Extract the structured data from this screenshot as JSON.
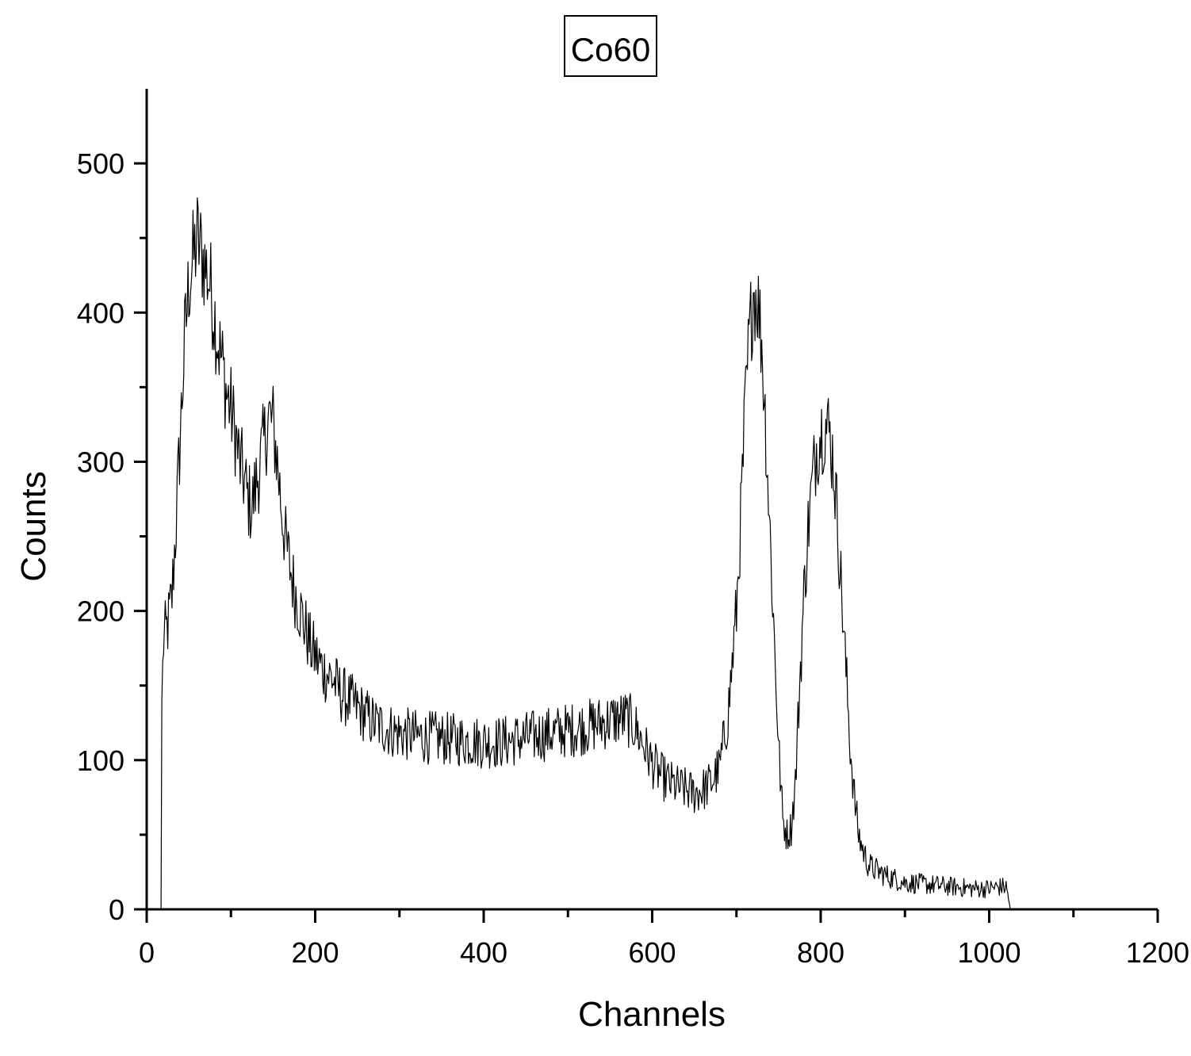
{
  "chart_data": {
    "type": "line",
    "title": "Co60",
    "xlabel": "Channels",
    "ylabel": "Counts",
    "xlim": [
      0,
      1200
    ],
    "ylim": [
      0,
      550
    ],
    "xticks": [
      0,
      200,
      400,
      600,
      800,
      1000,
      1200
    ],
    "xtick_labels": [
      "0",
      "200",
      "400",
      "600",
      "800",
      "1000",
      "1200"
    ],
    "yticks": [
      0,
      100,
      200,
      300,
      400,
      500
    ],
    "ytick_labels": [
      "0",
      "100",
      "200",
      "300",
      "400",
      "500"
    ],
    "x_minor_step": 100,
    "y_minor_step": 50,
    "grid": false,
    "line_color": "#000000",
    "series": [
      {
        "x": [
          17,
          18,
          20,
          25,
          30,
          35,
          40,
          45,
          50,
          55,
          60,
          65,
          70,
          75,
          80,
          85,
          90,
          95,
          100,
          105,
          110,
          115,
          120,
          125,
          130,
          135,
          140,
          145,
          150,
          155,
          160,
          165,
          170,
          175,
          180,
          185,
          190,
          195,
          200,
          210,
          220,
          230,
          240,
          250,
          260,
          270,
          280,
          290,
          300,
          320,
          340,
          360,
          380,
          400,
          420,
          440,
          460,
          480,
          500,
          520,
          540,
          560,
          570,
          580,
          590,
          600,
          610,
          620,
          630,
          640,
          650,
          660,
          670,
          680,
          690,
          700,
          705,
          710,
          715,
          720,
          725,
          730,
          735,
          740,
          745,
          750,
          755,
          760,
          765,
          770,
          775,
          780,
          785,
          790,
          795,
          800,
          805,
          810,
          815,
          820,
          825,
          830,
          835,
          840,
          845,
          850,
          855,
          860,
          870,
          880,
          890,
          900,
          920,
          940,
          960,
          980,
          1000,
          1010,
          1020,
          1023,
          1025
        ],
        "y": [
          0,
          140,
          180,
          190,
          210,
          260,
          320,
          380,
          420,
          435,
          450,
          440,
          430,
          420,
          400,
          380,
          365,
          345,
          335,
          320,
          300,
          290,
          275,
          270,
          285,
          300,
          315,
          330,
          325,
          300,
          270,
          245,
          230,
          215,
          205,
          195,
          185,
          175,
          170,
          160,
          155,
          145,
          140,
          135,
          130,
          125,
          122,
          120,
          118,
          116,
          115,
          114,
          113,
          112,
          112,
          114,
          116,
          118,
          120,
          122,
          125,
          128,
          128,
          122,
          110,
          98,
          90,
          85,
          82,
          80,
          78,
          80,
          85,
          95,
          130,
          200,
          260,
          330,
          380,
          415,
          410,
          380,
          320,
          250,
          180,
          110,
          60,
          50,
          55,
          85,
          150,
          210,
          255,
          285,
          310,
          320,
          325,
          320,
          300,
          260,
          210,
          160,
          110,
          75,
          50,
          40,
          32,
          28,
          25,
          22,
          20,
          18,
          17,
          16,
          15,
          14,
          14,
          15,
          15,
          8,
          0
        ]
      }
    ]
  }
}
